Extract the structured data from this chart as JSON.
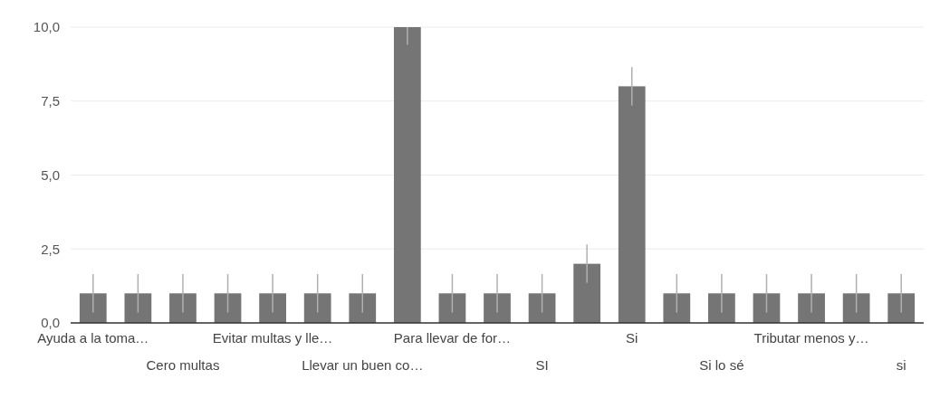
{
  "chart_data": {
    "type": "bar",
    "categories": [
      "Ayuda a la toma…",
      null,
      "Cero multas",
      null,
      "Evitar multas y lle…",
      null,
      "Llevar un buen co…",
      null,
      "Para llevar de for…",
      null,
      "SI",
      null,
      "Si",
      null,
      "Si lo sé",
      null,
      "Tributar menos y…",
      null,
      "si"
    ],
    "values": [
      1,
      1,
      1,
      1,
      1,
      1,
      1,
      10,
      1,
      1,
      1,
      2,
      8,
      1,
      1,
      1,
      1,
      1,
      1
    ],
    "errors": [
      0.65,
      0.65,
      0.65,
      0.65,
      0.65,
      0.65,
      0.65,
      [
        9.4,
        10
      ],
      0.65,
      0.65,
      0.65,
      0.65,
      0.65,
      0.65,
      0.65,
      0.65,
      0.65,
      0.65,
      0.65
    ],
    "color": "#757575",
    "ylim": [
      0,
      10
    ],
    "yticks": [
      {
        "value": 0,
        "label": "0,0"
      },
      {
        "value": 2.5,
        "label": "2,5"
      },
      {
        "value": 5,
        "label": "5,0"
      },
      {
        "value": 7.5,
        "label": "7,5"
      },
      {
        "value": 10,
        "label": "10,0"
      }
    ],
    "grid": "y"
  }
}
